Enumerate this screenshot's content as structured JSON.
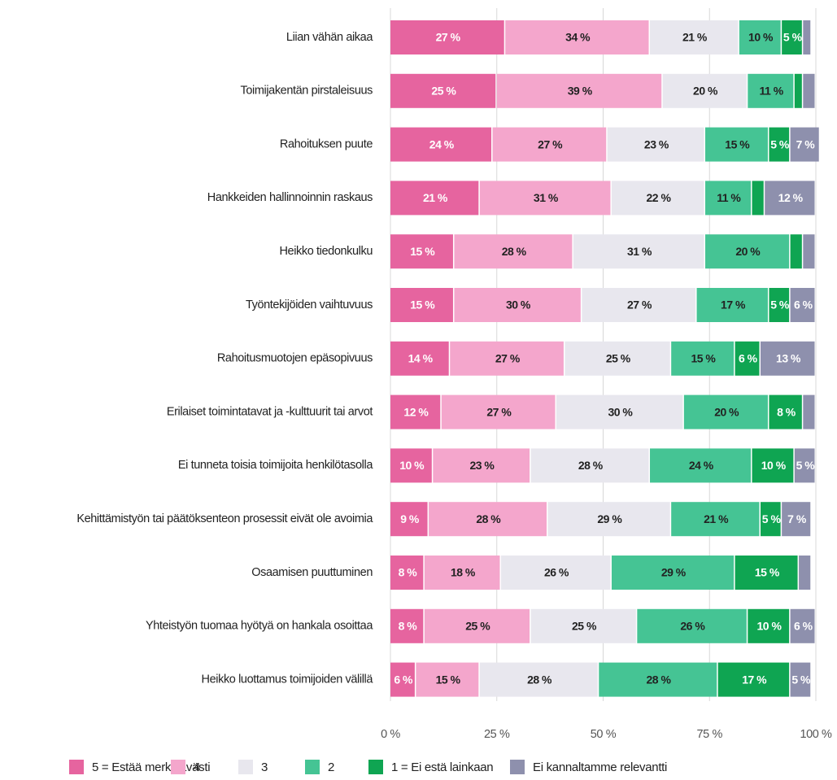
{
  "chart_data": {
    "type": "bar",
    "orientation": "horizontal",
    "stacked": true,
    "categories": [
      "Liian vähän aikaa",
      "Toimijakentän pirstaleisuus",
      "Rahoituksen puute",
      "Hankkeiden hallinnoinnin raskaus",
      "Heikko tiedonkulku",
      "Työntekijöiden vaihtuvuus",
      "Rahoitusmuotojen epäsopivuus",
      "Erilaiset toimintatavat ja -kulttuurit tai arvot",
      "Ei tunneta toisia toimijoita henkilötasolla",
      "Kehittämistyön tai päätöksenteon prosessit eivät ole avoimia",
      "Osaamisen puuttuminen",
      "Yhteistyön tuomaa hyötyä on hankala osoittaa",
      "Heikko luottamus toimijoiden välillä"
    ],
    "series": [
      {
        "name": "5 = Estää merkittävästi",
        "color": "#e6649f",
        "values": [
          27,
          25,
          24,
          21,
          15,
          15,
          14,
          12,
          10,
          9,
          8,
          8,
          6
        ],
        "value_labels": [
          "27 %",
          "25 %",
          "24 %",
          "21 %",
          "15 %",
          "15 %",
          "14 %",
          "12 %",
          "10 %",
          "9 %",
          "8 %",
          "8 %",
          "6 %"
        ]
      },
      {
        "name": "4",
        "color": "#f4a6cc",
        "values": [
          34,
          39,
          27,
          31,
          28,
          30,
          27,
          27,
          23,
          28,
          18,
          25,
          15
        ],
        "value_labels": [
          "34 %",
          "39 %",
          "27 %",
          "31 %",
          "28 %",
          "30 %",
          "27 %",
          "27 %",
          "23 %",
          "28 %",
          "18 %",
          "25 %",
          "15 %"
        ]
      },
      {
        "name": "3",
        "color": "#e8e7ee",
        "values": [
          21,
          20,
          23,
          22,
          31,
          27,
          25,
          30,
          28,
          29,
          26,
          25,
          28
        ],
        "value_labels": [
          "21 %",
          "20 %",
          "23 %",
          "22 %",
          "31 %",
          "27 %",
          "25 %",
          "30 %",
          "28 %",
          "29 %",
          "26 %",
          "25 %",
          "28 %"
        ]
      },
      {
        "name": "2",
        "color": "#45c494",
        "values": [
          10,
          11,
          15,
          11,
          20,
          17,
          15,
          20,
          24,
          21,
          29,
          26,
          28
        ],
        "value_labels": [
          "10 %",
          "11 %",
          "15 %",
          "11 %",
          "20 %",
          "17 %",
          "15 %",
          "20 %",
          "24 %",
          "21 %",
          "29 %",
          "26 %",
          "28 %"
        ]
      },
      {
        "name": "1 = Ei estä lainkaan",
        "color": "#0fa552",
        "values": [
          5,
          2,
          5,
          3,
          3,
          5,
          6,
          8,
          10,
          5,
          15,
          10,
          17
        ],
        "value_labels": [
          "5 %",
          null,
          "5 %",
          null,
          null,
          "5 %",
          "6 %",
          "8 %",
          "10 %",
          "5 %",
          "15 %",
          "10 %",
          "17 %"
        ]
      },
      {
        "name": "Ei kannaltamme relevantti",
        "color": "#8e90ad",
        "values": [
          2,
          3,
          7,
          12,
          3,
          6,
          13,
          3,
          5,
          7,
          3,
          6,
          5
        ],
        "value_labels": [
          null,
          null,
          "7 %",
          "12 %",
          null,
          "6 %",
          "13 %",
          null,
          "5 %",
          "7 %",
          null,
          "6 %",
          "5 %"
        ]
      }
    ],
    "xlim": [
      0,
      100
    ],
    "xticks": [
      {
        "value": 0,
        "label": "0 %"
      },
      {
        "value": 25,
        "label": "25 %"
      },
      {
        "value": 50,
        "label": "50 %"
      },
      {
        "value": 75,
        "label": "75 %"
      },
      {
        "value": 100,
        "label": "100 %"
      }
    ],
    "grid": true,
    "legend": "bottom"
  }
}
